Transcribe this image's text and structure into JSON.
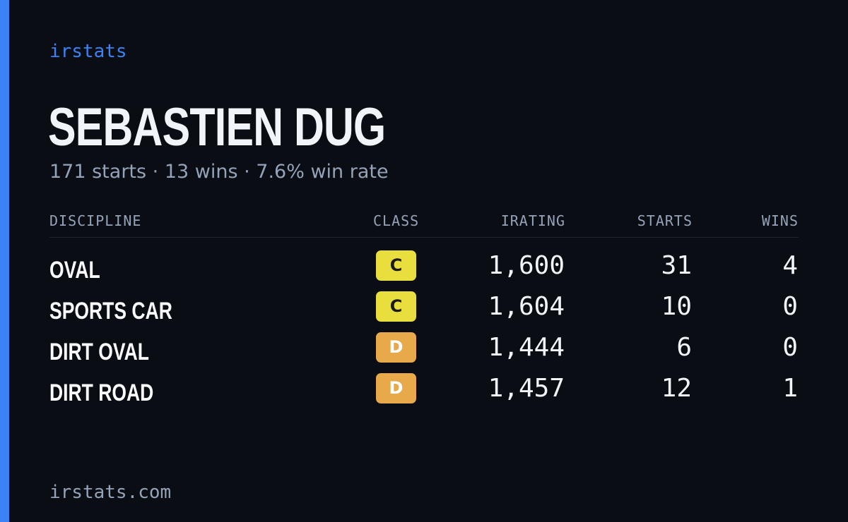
{
  "brand": "irstats",
  "driver": {
    "name": "SEBASTIEN DUG",
    "summary": "171 starts · 13 wins · 7.6% win rate"
  },
  "table": {
    "headers": {
      "discipline": "DISCIPLINE",
      "class": "CLASS",
      "irating": "IRATING",
      "starts": "STARTS",
      "wins": "WINS"
    },
    "rows": [
      {
        "discipline": "OVAL",
        "class": "C",
        "irating": "1,600",
        "starts": "31",
        "wins": "4"
      },
      {
        "discipline": "SPORTS CAR",
        "class": "C",
        "irating": "1,604",
        "starts": "10",
        "wins": "0"
      },
      {
        "discipline": "DIRT OVAL",
        "class": "D",
        "irating": "1,444",
        "starts": "6",
        "wins": "0"
      },
      {
        "discipline": "DIRT ROAD",
        "class": "D",
        "irating": "1,457",
        "starts": "12",
        "wins": "1"
      }
    ]
  },
  "footer": "irstats.com",
  "colors": {
    "accent": "#3b82f6",
    "background": "#0a0d14",
    "class_c": "#e8df3f",
    "class_d": "#e8a94a"
  }
}
